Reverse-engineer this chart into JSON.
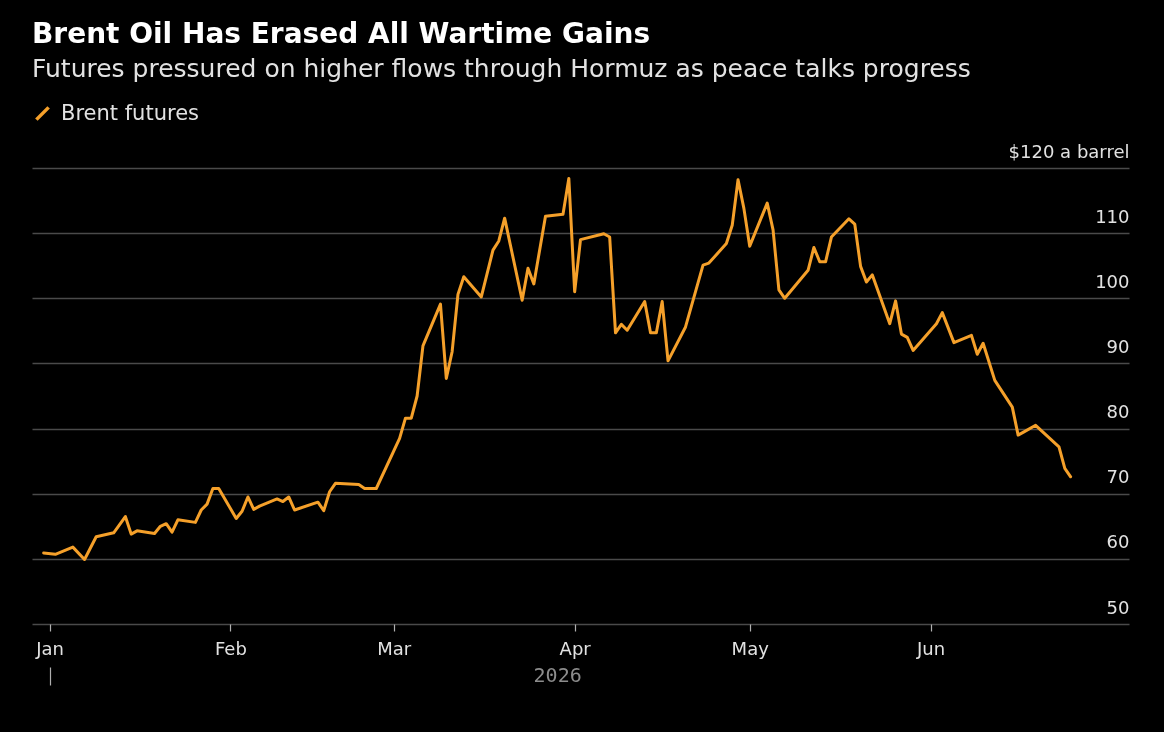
{
  "chart_data": {
    "type": "line",
    "title": "Brent Oil Has Erased All Wartime Gains",
    "subtitle": "Futures pressured on higher flows through Hormuz as peace talks progress",
    "xlabel": "2026",
    "x": [
      "2025-12-31",
      "2026-01-02",
      "2026-01-05",
      "2026-01-07",
      "2026-01-09",
      "2026-01-12",
      "2026-01-14",
      "2026-01-15",
      "2026-01-16",
      "2026-01-19",
      "2026-01-20",
      "2026-01-21",
      "2026-01-22",
      "2026-01-23",
      "2026-01-26",
      "2026-01-27",
      "2026-01-28",
      "2026-01-29",
      "2026-01-30",
      "2026-02-02",
      "2026-02-03",
      "2026-02-04",
      "2026-02-05",
      "2026-02-06",
      "2026-02-09",
      "2026-02-10",
      "2026-02-11",
      "2026-02-12",
      "2026-02-16",
      "2026-02-17",
      "2026-02-18",
      "2026-02-19",
      "2026-02-23",
      "2026-02-24",
      "2026-02-26",
      "2026-03-02",
      "2026-03-03",
      "2026-03-04",
      "2026-03-05",
      "2026-03-06",
      "2026-03-09",
      "2026-03-10",
      "2026-03-11",
      "2026-03-12",
      "2026-03-13",
      "2026-03-16",
      "2026-03-18",
      "2026-03-19",
      "2026-03-20",
      "2026-03-23",
      "2026-03-24",
      "2026-03-25",
      "2026-03-27",
      "2026-03-30",
      "2026-03-31",
      "2026-04-01",
      "2026-04-02",
      "2026-04-06",
      "2026-04-07",
      "2026-04-08",
      "2026-04-09",
      "2026-04-10",
      "2026-04-13",
      "2026-04-14",
      "2026-04-15",
      "2026-04-16",
      "2026-04-17",
      "2026-04-20",
      "2026-04-23",
      "2026-04-24",
      "2026-04-27",
      "2026-04-28",
      "2026-04-29",
      "2026-04-30",
      "2026-05-01",
      "2026-05-04",
      "2026-05-05",
      "2026-05-06",
      "2026-05-07",
      "2026-05-11",
      "2026-05-12",
      "2026-05-13",
      "2026-05-14",
      "2026-05-15",
      "2026-05-18",
      "2026-05-19",
      "2026-05-20",
      "2026-05-21",
      "2026-05-22",
      "2026-05-25",
      "2026-05-26",
      "2026-05-27",
      "2026-05-28",
      "2026-05-29",
      "2026-06-02",
      "2026-06-03",
      "2026-06-05",
      "2026-06-08",
      "2026-06-09",
      "2026-06-10",
      "2026-06-12",
      "2026-06-15",
      "2026-06-16",
      "2026-06-17",
      "2026-06-19",
      "2026-06-23",
      "2026-06-24",
      "2026-06-25"
    ],
    "series": [
      {
        "name": "Brent futures",
        "color": "#f5a02a",
        "values": [
          60.9,
          60.7,
          61.8,
          59.9,
          63.4,
          64.0,
          66.5,
          63.8,
          64.3,
          63.9,
          65.0,
          65.4,
          64.1,
          66.0,
          65.6,
          67.5,
          68.4,
          70.8,
          70.8,
          66.2,
          67.3,
          69.5,
          67.6,
          68.1,
          69.2,
          68.8,
          69.5,
          67.5,
          68.7,
          67.4,
          70.3,
          71.6,
          71.4,
          70.8,
          70.8,
          78.5,
          81.6,
          81.6,
          85.0,
          92.7,
          99.1,
          87.7,
          91.8,
          100.6,
          103.3,
          100.2,
          107.4,
          108.8,
          112.3,
          99.7,
          104.6,
          102.2,
          112.6,
          112.9,
          118.4,
          101.0,
          109.0,
          109.9,
          109.4,
          94.7,
          96.0,
          95.1,
          99.5,
          94.7,
          94.7,
          99.5,
          90.4,
          95.6,
          105.1,
          105.4,
          108.4,
          111.2,
          118.2,
          113.8,
          108.0,
          114.6,
          110.5,
          101.3,
          100.0,
          104.3,
          107.8,
          105.6,
          105.6,
          109.4,
          112.2,
          111.4,
          104.9,
          102.5,
          103.6,
          96.1,
          99.6,
          94.5,
          94.0,
          92.0,
          96.1,
          97.8,
          93.2,
          94.3,
          91.4,
          93.1,
          87.4,
          83.3,
          79.0,
          79.5,
          80.5,
          77.2,
          73.9,
          72.6
        ]
      }
    ],
    "xlim": [
      "2025-12-29",
      "2026-07-05"
    ],
    "xticks": [
      {
        "value": "2026-01-01",
        "label": "Jan"
      },
      {
        "value": "2026-02-01",
        "label": "Feb"
      },
      {
        "value": "2026-03-01",
        "label": "Mar"
      },
      {
        "value": "2026-04-01",
        "label": "Apr"
      },
      {
        "value": "2026-05-01",
        "label": "May"
      },
      {
        "value": "2026-06-01",
        "label": "Jun"
      }
    ],
    "ylim": [
      50,
      120
    ],
    "yticks": [
      50,
      60,
      70,
      80,
      90,
      100,
      110,
      {
        "value": 120,
        "label": "$120 a barrel"
      }
    ],
    "grid": "y",
    "legend": "top left"
  }
}
